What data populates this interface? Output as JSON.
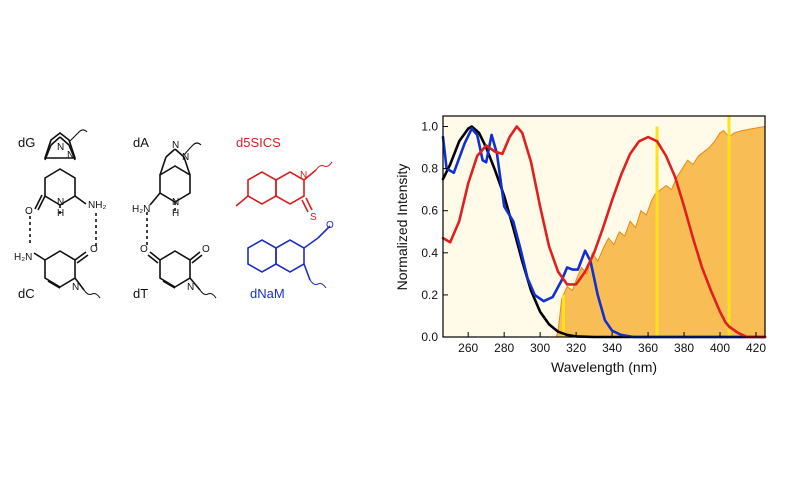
{
  "structures": {
    "dG": "dG",
    "dA": "dA",
    "d5SICS": "d5SICS",
    "dC": "dC",
    "dT": "dT",
    "dNaM": "dNaM",
    "nh2": "NH₂",
    "h2n": "H₂N",
    "n": "N",
    "h": "H",
    "o": "O",
    "s": "S",
    "colors": {
      "natural": "#111111",
      "d5SICS": "#d42020",
      "dNaM": "#1f2fbf"
    }
  },
  "chart_data": {
    "type": "line",
    "xlabel": "Wavelength (nm)",
    "ylabel": "Normalized Intensity",
    "xlim": [
      246,
      425
    ],
    "ylim": [
      0,
      1.05
    ],
    "xticks": [
      260,
      280,
      300,
      320,
      340,
      360,
      380,
      400,
      420
    ],
    "yticks": [
      0.0,
      0.2,
      0.4,
      0.6,
      0.8,
      1.0
    ],
    "ytick_labels": [
      "0.0",
      "0.2",
      "0.4",
      "0.6",
      "0.8",
      "1.0"
    ],
    "grid": false,
    "series": [
      {
        "color": "#000000",
        "points": [
          [
            246,
            0.75
          ],
          [
            250,
            0.82
          ],
          [
            255,
            0.93
          ],
          [
            260,
            0.99
          ],
          [
            262,
            1.0
          ],
          [
            266,
            0.97
          ],
          [
            270,
            0.9
          ],
          [
            275,
            0.79
          ],
          [
            280,
            0.67
          ],
          [
            285,
            0.52
          ],
          [
            290,
            0.36
          ],
          [
            295,
            0.22
          ],
          [
            300,
            0.12
          ],
          [
            305,
            0.06
          ],
          [
            310,
            0.025
          ],
          [
            315,
            0.01
          ],
          [
            320,
            0.003
          ],
          [
            330,
            0.0
          ],
          [
            425,
            0.0
          ]
        ]
      },
      {
        "color": "#1030d0",
        "points": [
          [
            246,
            0.95
          ],
          [
            248,
            0.8
          ],
          [
            252,
            0.78
          ],
          [
            258,
            0.92
          ],
          [
            262,
            0.99
          ],
          [
            265,
            0.96
          ],
          [
            268,
            0.84
          ],
          [
            270,
            0.83
          ],
          [
            273,
            0.96
          ],
          [
            276,
            0.87
          ],
          [
            280,
            0.62
          ],
          [
            285,
            0.55
          ],
          [
            289,
            0.42
          ],
          [
            293,
            0.28
          ],
          [
            297,
            0.2
          ],
          [
            302,
            0.17
          ],
          [
            307,
            0.19
          ],
          [
            312,
            0.27
          ],
          [
            315,
            0.33
          ],
          [
            318,
            0.32
          ],
          [
            321,
            0.32
          ],
          [
            325,
            0.41
          ],
          [
            328,
            0.36
          ],
          [
            332,
            0.2
          ],
          [
            336,
            0.08
          ],
          [
            340,
            0.03
          ],
          [
            345,
            0.01
          ],
          [
            352,
            0.0
          ],
          [
            425,
            0.0
          ]
        ]
      },
      {
        "color": "#e02020",
        "points": [
          [
            246,
            0.47
          ],
          [
            250,
            0.45
          ],
          [
            255,
            0.55
          ],
          [
            260,
            0.73
          ],
          [
            265,
            0.86
          ],
          [
            270,
            0.91
          ],
          [
            275,
            0.88
          ],
          [
            279,
            0.87
          ],
          [
            283,
            0.95
          ],
          [
            287,
            1.0
          ],
          [
            290,
            0.97
          ],
          [
            295,
            0.83
          ],
          [
            300,
            0.62
          ],
          [
            305,
            0.43
          ],
          [
            310,
            0.31
          ],
          [
            315,
            0.25
          ],
          [
            320,
            0.25
          ],
          [
            325,
            0.31
          ],
          [
            330,
            0.4
          ],
          [
            335,
            0.52
          ],
          [
            340,
            0.65
          ],
          [
            345,
            0.77
          ],
          [
            350,
            0.87
          ],
          [
            355,
            0.93
          ],
          [
            360,
            0.95
          ],
          [
            365,
            0.93
          ],
          [
            370,
            0.86
          ],
          [
            375,
            0.76
          ],
          [
            380,
            0.62
          ],
          [
            385,
            0.47
          ],
          [
            390,
            0.33
          ],
          [
            395,
            0.22
          ],
          [
            400,
            0.12
          ],
          [
            403,
            0.07
          ],
          [
            405,
            0.05
          ],
          [
            410,
            0.02
          ],
          [
            415,
            0.0
          ],
          [
            425,
            0.0
          ]
        ]
      }
    ],
    "lamp_spectrum": {
      "color": "#f7b13a",
      "points": [
        [
          246,
          0.0
        ],
        [
          309,
          0.0
        ],
        [
          310,
          0.03
        ],
        [
          312,
          0.18
        ],
        [
          315,
          0.24
        ],
        [
          318,
          0.22
        ],
        [
          320,
          0.27
        ],
        [
          323,
          0.33
        ],
        [
          326,
          0.3
        ],
        [
          329,
          0.4
        ],
        [
          332,
          0.36
        ],
        [
          335,
          0.42
        ],
        [
          338,
          0.47
        ],
        [
          341,
          0.44
        ],
        [
          344,
          0.5
        ],
        [
          347,
          0.48
        ],
        [
          350,
          0.55
        ],
        [
          353,
          0.52
        ],
        [
          356,
          0.6
        ],
        [
          359,
          0.58
        ],
        [
          362,
          0.65
        ],
        [
          364,
          0.68
        ],
        [
          367,
          0.7
        ],
        [
          370,
          0.72
        ],
        [
          373,
          0.7
        ],
        [
          376,
          0.76
        ],
        [
          379,
          0.8
        ],
        [
          382,
          0.84
        ],
        [
          385,
          0.82
        ],
        [
          388,
          0.86
        ],
        [
          391,
          0.88
        ],
        [
          394,
          0.9
        ],
        [
          397,
          0.93
        ],
        [
          400,
          0.97
        ],
        [
          402,
          0.98
        ],
        [
          405,
          0.95
        ],
        [
          408,
          0.97
        ],
        [
          412,
          0.98
        ],
        [
          418,
          0.99
        ],
        [
          425,
          1.0
        ]
      ]
    },
    "lamp_lines": [
      {
        "x": 313,
        "y": 0.2
      },
      {
        "x": 365,
        "y": 1.0
      },
      {
        "x": 405,
        "y": 1.05
      }
    ]
  }
}
